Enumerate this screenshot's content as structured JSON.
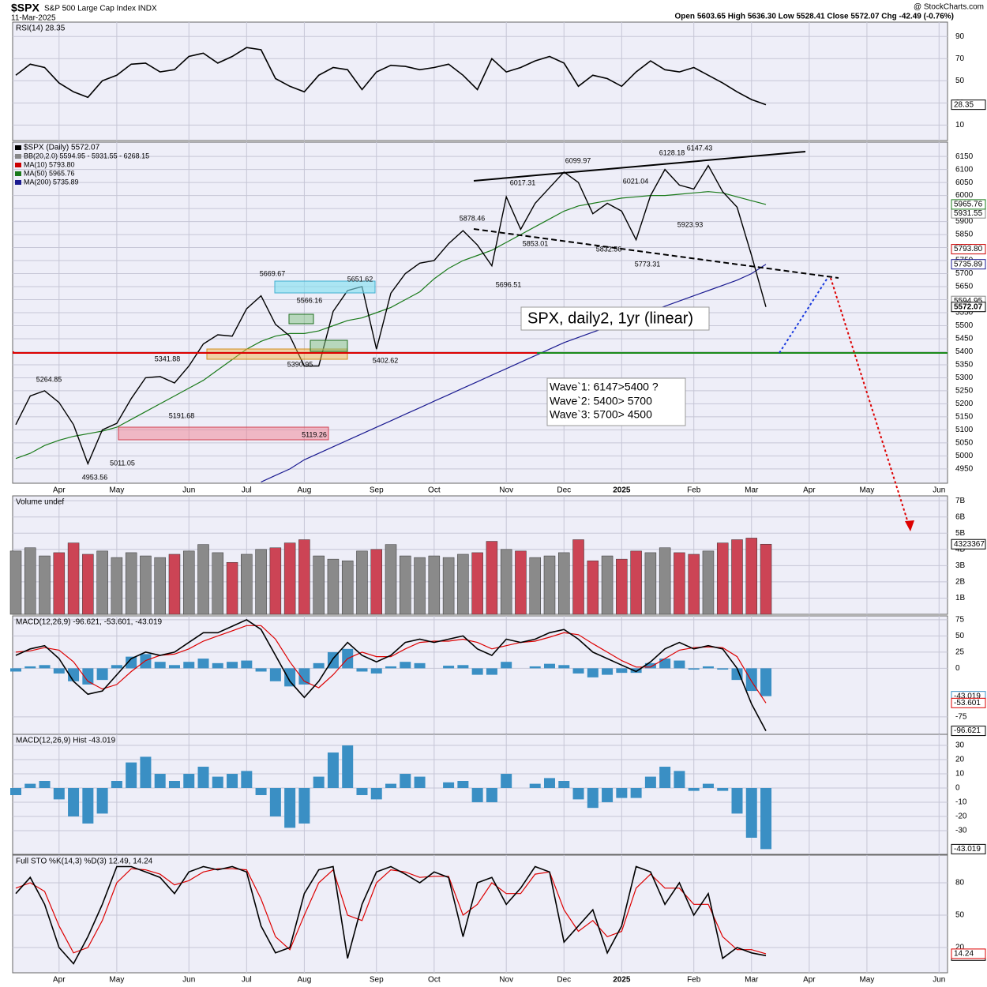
{
  "chart_data": [
    {
      "type": "line",
      "title": "$SPX",
      "subtitle": "S&P 500 Large Cap Index INDX",
      "date": "11-Mar-2025",
      "quote": "Open 5603.65 High 5636.30 Low 5528.41 Close 5572.07 Chg -42.49 (-0.76%)",
      "source": "@ StockCharts.com",
      "categories": [
        null,
        null,
        null,
        "Apr",
        null,
        null,
        null,
        "May",
        null,
        null,
        null,
        null,
        "Jun",
        null,
        null,
        null,
        "Jul",
        null,
        null,
        null,
        "Aug",
        null,
        null,
        null,
        null,
        "Sep",
        null,
        null,
        null,
        "Oct",
        null,
        null,
        null,
        null,
        "Nov",
        null,
        null,
        null,
        "Dec",
        null,
        null,
        null,
        "2025",
        null,
        null,
        null,
        null,
        "Feb",
        null,
        null,
        null,
        "Mar",
        null,
        null,
        null,
        "Apr",
        null,
        null,
        null,
        "May",
        null,
        null,
        null,
        null,
        "Jun"
      ],
      "series": [
        {
          "name": "$SPX (Daily) 5572.07",
          "color": "#000000",
          "values": [
            5120,
            5230,
            5250,
            5205,
            5120,
            4970,
            5100,
            5125,
            5220,
            5300,
            5305,
            5280,
            5345,
            5430,
            5465,
            5460,
            5565,
            5615,
            5505,
            5460,
            5345,
            5345,
            5555,
            5635,
            5650,
            5410,
            5625,
            5700,
            5740,
            5750,
            5815,
            5865,
            5810,
            5730,
            5995,
            5870,
            5970,
            6030,
            6090,
            6050,
            5930,
            5970,
            5940,
            5830,
            6000,
            6100,
            6040,
            6025,
            6115,
            6015,
            5955,
            5770,
            5572.07,
            null,
            null,
            null,
            null,
            null,
            null,
            null,
            null,
            null,
            null,
            null,
            null
          ]
        },
        {
          "name": "MA(50) 5965.76",
          "color": "#1a7a1a",
          "values": [
            4990,
            5010,
            5040,
            5060,
            5075,
            5085,
            5095,
            5110,
            5140,
            5170,
            5200,
            5230,
            5260,
            5290,
            5330,
            5370,
            5410,
            5440,
            5460,
            5470,
            5470,
            5480,
            5500,
            5520,
            5530,
            5550,
            5570,
            5600,
            5630,
            5680,
            5720,
            5750,
            5770,
            5790,
            5820,
            5850,
            5880,
            5910,
            5940,
            5960,
            5970,
            5980,
            5990,
            5995,
            6000,
            6000,
            6005,
            6010,
            6015,
            6010,
            5995,
            5980,
            5965.76,
            null,
            null,
            null,
            null,
            null,
            null,
            null,
            null,
            null,
            null,
            null,
            null
          ]
        },
        {
          "name": "MA(200) 5735.89",
          "color": "#1a1a90",
          "values": [
            null,
            null,
            null,
            null,
            null,
            null,
            null,
            null,
            null,
            null,
            null,
            null,
            null,
            null,
            null,
            null,
            null,
            4900,
            4925,
            4950,
            4985,
            5010,
            5035,
            5060,
            5085,
            5110,
            5135,
            5160,
            5185,
            5210,
            5235,
            5260,
            5285,
            5310,
            5335,
            5360,
            5385,
            5410,
            5435,
            5455,
            5475,
            5495,
            5515,
            5535,
            5555,
            5575,
            5595,
            5615,
            5635,
            5655,
            5675,
            5700,
            5735.89,
            null,
            null,
            null,
            null,
            null,
            null,
            null,
            null,
            null,
            null,
            null,
            null
          ]
        }
      ],
      "legend_notes": [
        {
          "text": "BB(20,2.0) 5594.95 - 5931.55 - 6268.15",
          "color": "#888888"
        },
        {
          "text": "MA(10) 5793.80",
          "color": "#cc0000"
        }
      ],
      "right_labels": [
        {
          "value": 5931.55,
          "color": "#888888"
        },
        {
          "value": 5793.8,
          "label": "5793.80",
          "color": "#cc0000"
        },
        {
          "value": 5594.95,
          "color": "#888888"
        }
      ],
      "peak_labels": [
        5264.85,
        4953.56,
        5011.05,
        5191.68,
        5341.88,
        5669.67,
        5566.16,
        5390.95,
        5119.26,
        5651.62,
        5402.62,
        5878.46,
        5696.51,
        5853.01,
        6017.31,
        6099.97,
        5832.56,
        6021.04,
        5773.31,
        6128.18,
        5923.93,
        6147.43
      ],
      "annotations": [
        "SPX, daily2, 1yr (linear)",
        "Wave`1: 6147>5400 ?",
        "Wave`2: 5400> 5700",
        "Wave`3: 5700> 4500"
      ],
      "support": 5400,
      "ylim": [
        4895,
        6205
      ],
      "yticks": [
        4950,
        5000,
        5050,
        5100,
        5150,
        5200,
        5250,
        5300,
        5350,
        5400,
        5450,
        5500,
        5550,
        5600,
        5650,
        5700,
        5750,
        5800,
        5850,
        5900,
        5950,
        6000,
        6050,
        6100,
        6150
      ],
      "grid": true
    },
    {
      "type": "line",
      "series": [
        {
          "name": "RSI(14) 28.35",
          "color": "#000000",
          "values": [
            55,
            65,
            62,
            48,
            40,
            35,
            50,
            55,
            65,
            66,
            58,
            60,
            72,
            75,
            66,
            72,
            80,
            78,
            52,
            45,
            40,
            55,
            62,
            60,
            42,
            58,
            64,
            63,
            60,
            62,
            65,
            55,
            42,
            70,
            58,
            62,
            68,
            72,
            66,
            45,
            55,
            52,
            45,
            58,
            68,
            60,
            58,
            62,
            55,
            48,
            40,
            33,
            28.35
          ]
        }
      ],
      "ylim": [
        -4,
        103
      ],
      "yticks": [
        10,
        30,
        50,
        70,
        90
      ],
      "grid": true
    },
    {
      "type": "bar",
      "series": [
        {
          "name": "Volume undef",
          "values": [
            3.9,
            4.1,
            3.6,
            3.8,
            4.4,
            3.7,
            3.9,
            3.5,
            3.8,
            3.6,
            3.5,
            3.7,
            3.9,
            4.3,
            3.8,
            3.2,
            3.7,
            4.0,
            4.1,
            4.4,
            4.6,
            3.6,
            3.4,
            3.3,
            3.9,
            4.0,
            4.3,
            3.6,
            3.5,
            3.6,
            3.5,
            3.7,
            3.8,
            4.5,
            4.0,
            3.9,
            3.5,
            3.6,
            3.8,
            4.6,
            3.3,
            3.6,
            3.4,
            3.9,
            3.8,
            4.1,
            3.8,
            3.7,
            3.9,
            4.4,
            4.6,
            4.7,
            4.32
          ]
        }
      ],
      "up_color": "#8a8a8a",
      "down_color": "#cc4455",
      "last_label": "4323367",
      "ylim": [
        0,
        7.3
      ],
      "yticks": [
        {
          "value": 1,
          "label": "1B"
        },
        {
          "value": 2,
          "label": "2B"
        },
        {
          "value": 3,
          "label": "3B"
        },
        {
          "value": 4,
          "label": "4B"
        },
        {
          "value": 5,
          "label": "5B"
        },
        {
          "value": 6,
          "label": "6B"
        },
        {
          "value": 7,
          "label": "7B"
        }
      ],
      "grid": true
    },
    {
      "type": "line",
      "title": "MACD(12,26,9) -96.621, -53.601, -43.019",
      "series": [
        {
          "color": "#000000",
          "values": [
            20,
            30,
            35,
            15,
            -20,
            -40,
            -35,
            -10,
            15,
            25,
            20,
            25,
            40,
            55,
            55,
            65,
            75,
            60,
            20,
            -20,
            -45,
            -20,
            15,
            40,
            20,
            10,
            20,
            40,
            45,
            40,
            45,
            50,
            30,
            20,
            45,
            40,
            45,
            55,
            60,
            45,
            25,
            15,
            5,
            -5,
            10,
            30,
            40,
            30,
            35,
            30,
            0,
            -55,
            -96.621
          ]
        },
        {
          "color": "#dd0000",
          "values": [
            25,
            27,
            32,
            28,
            10,
            -20,
            -32,
            -25,
            -5,
            12,
            20,
            22,
            30,
            42,
            50,
            58,
            66,
            66,
            45,
            10,
            -20,
            -30,
            -10,
            15,
            25,
            18,
            18,
            30,
            40,
            42,
            42,
            45,
            40,
            30,
            35,
            40,
            42,
            48,
            55,
            52,
            38,
            25,
            12,
            2,
            2,
            15,
            28,
            32,
            33,
            32,
            18,
            -20,
            -53.601
          ]
        }
      ],
      "show_histogram": true,
      "ylim": [
        -102,
        81
      ],
      "yticks": [
        -75,
        0,
        25,
        50,
        75
      ],
      "grid": true
    },
    {
      "type": "bar",
      "title": "MACD(12,26,9) Hist -43.019",
      "series": [
        {
          "color": "#3a8fc4",
          "values": [
            -5,
            3,
            5,
            -8,
            -20,
            -25,
            -18,
            5,
            18,
            22,
            10,
            5,
            10,
            15,
            8,
            10,
            12,
            -5,
            -20,
            -28,
            -25,
            8,
            25,
            30,
            -5,
            -8,
            3,
            10,
            8,
            0,
            4,
            5,
            -10,
            -10,
            10,
            0,
            3,
            7,
            5,
            -8,
            -14,
            -10,
            -7,
            -7,
            8,
            15,
            12,
            -2,
            3,
            -2,
            -18,
            -35,
            -43.019
          ]
        }
      ],
      "ylim": [
        -46.7,
        37.8
      ],
      "yticks": [
        -30,
        -20,
        -10,
        0,
        10,
        20,
        30
      ],
      "grid": true
    },
    {
      "type": "line",
      "title": "Full STO %K(14,3) %D(3) 12.49, 14.24",
      "categories": [
        null,
        null,
        null,
        "Apr",
        null,
        null,
        null,
        "May",
        null,
        null,
        null,
        null,
        "Jun",
        null,
        null,
        null,
        "Jul",
        null,
        null,
        null,
        "Aug",
        null,
        null,
        null,
        null,
        "Sep",
        null,
        null,
        null,
        "Oct",
        null,
        null,
        null,
        null,
        "Nov",
        null,
        null,
        null,
        "Dec",
        null,
        null,
        null,
        "2025",
        null,
        null,
        null,
        null,
        "Feb",
        null,
        null,
        null,
        "Mar",
        null,
        null,
        null,
        "Apr",
        null,
        null,
        null,
        "May",
        null,
        null,
        null,
        null,
        "Jun"
      ],
      "series": [
        {
          "color": "#000000",
          "values": [
            70,
            85,
            60,
            20,
            5,
            30,
            60,
            95,
            95,
            90,
            85,
            70,
            90,
            95,
            92,
            95,
            90,
            40,
            15,
            20,
            70,
            92,
            95,
            10,
            60,
            90,
            95,
            88,
            80,
            90,
            85,
            30,
            80,
            85,
            60,
            75,
            95,
            90,
            25,
            40,
            55,
            15,
            40,
            95,
            90,
            60,
            80,
            50,
            70,
            10,
            20,
            15,
            12.49,
            null,
            null,
            null,
            null,
            null,
            null,
            null,
            null,
            null,
            null,
            null,
            null
          ]
        },
        {
          "color": "#dd0000",
          "values": [
            75,
            80,
            72,
            40,
            15,
            20,
            45,
            80,
            93,
            92,
            88,
            78,
            82,
            90,
            93,
            93,
            92,
            65,
            30,
            18,
            50,
            80,
            92,
            50,
            45,
            80,
            92,
            90,
            85,
            86,
            86,
            50,
            60,
            80,
            70,
            70,
            88,
            90,
            55,
            35,
            45,
            30,
            35,
            75,
            88,
            75,
            75,
            60,
            60,
            30,
            18,
            18,
            14.24,
            null,
            null,
            null,
            null,
            null,
            null,
            null,
            null,
            null,
            null,
            null,
            null
          ]
        }
      ],
      "ylim": [
        -3.4,
        105.6
      ],
      "yticks": [
        20,
        50,
        80
      ],
      "grid": true
    }
  ]
}
